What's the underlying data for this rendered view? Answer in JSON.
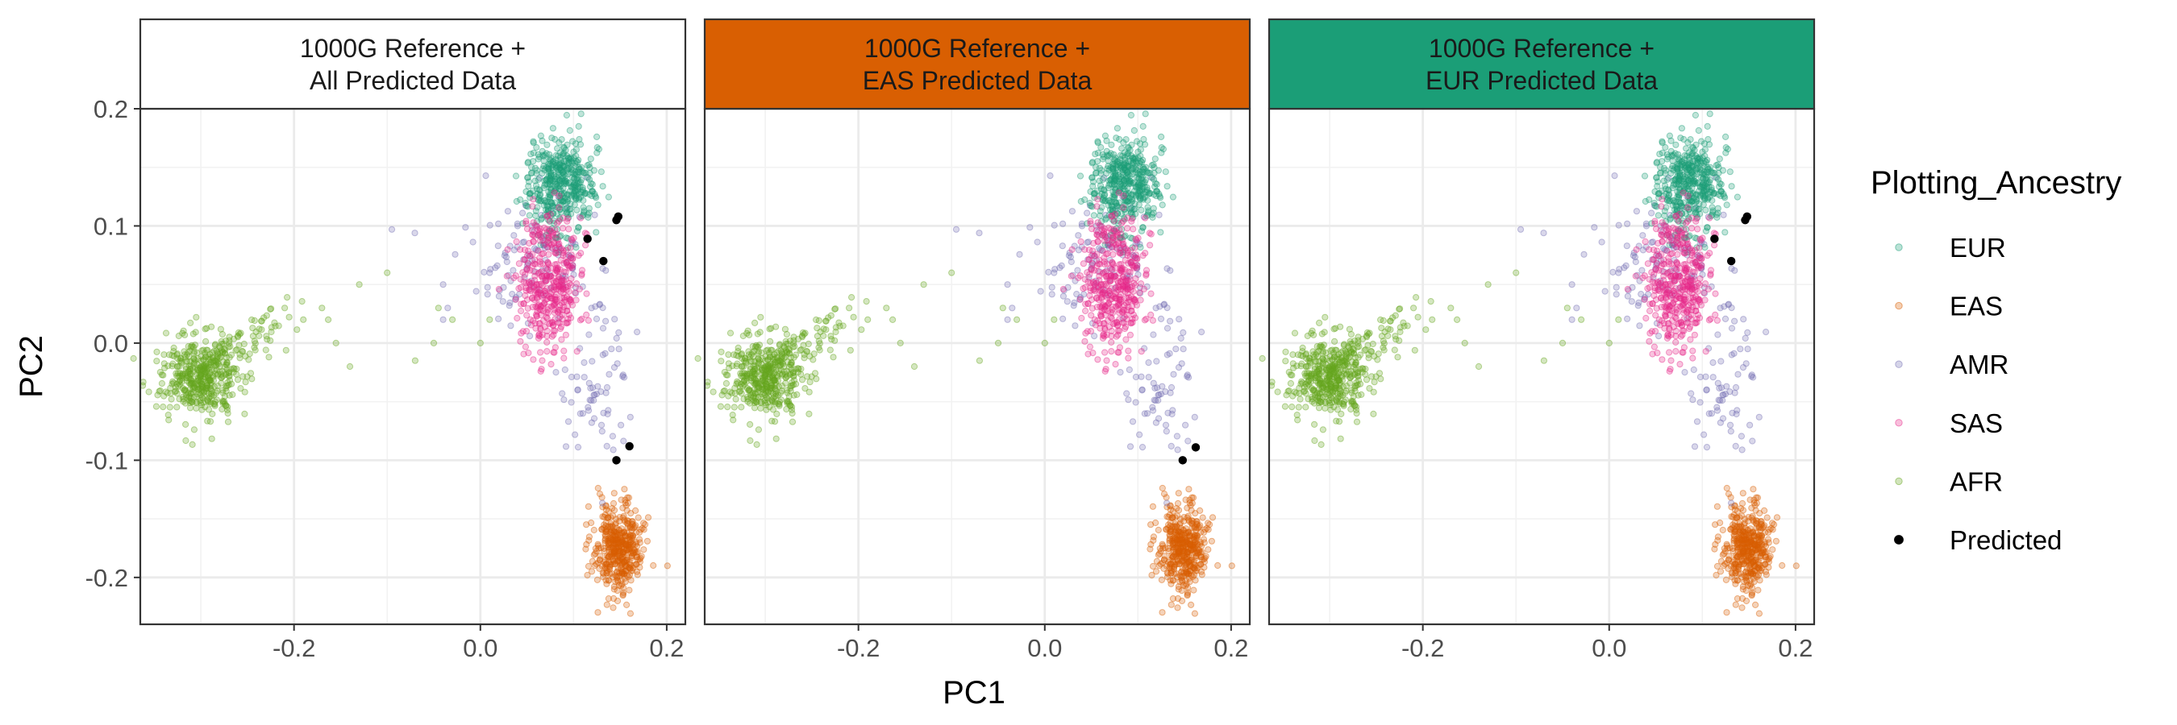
{
  "chart_data": {
    "type": "scatter",
    "xlabel": "PC1",
    "ylabel": "PC2",
    "xlim": [
      -0.365,
      0.22
    ],
    "ylim": [
      -0.24,
      0.2
    ],
    "x_ticks": [
      -0.2,
      0.0,
      0.2
    ],
    "x_tick_labels": [
      "-0.2",
      "0.0",
      "0.2"
    ],
    "y_ticks": [
      -0.2,
      -0.1,
      0.0,
      0.1,
      0.2
    ],
    "y_tick_labels": [
      "-0.2",
      "-0.1",
      "0.0",
      "0.1",
      "0.2"
    ],
    "grid": true,
    "legend": {
      "title": "Plotting_Ancestry",
      "position": "right",
      "entries": [
        {
          "label": "EUR",
          "color": "#1b9e77",
          "opacity": 0.3
        },
        {
          "label": "EAS",
          "color": "#d95f02",
          "opacity": 0.3
        },
        {
          "label": "AMR",
          "color": "#7570b3",
          "opacity": 0.3
        },
        {
          "label": "SAS",
          "color": "#e7298a",
          "opacity": 0.3
        },
        {
          "label": "AFR",
          "color": "#66a61e",
          "opacity": 0.3
        },
        {
          "label": "Predicted",
          "color": "#000000",
          "opacity": 1.0
        }
      ]
    },
    "reference_clusters": [
      {
        "group": "EUR",
        "center": [
          0.085,
          0.135
        ],
        "spread": [
          0.018,
          0.02
        ],
        "n": 420
      },
      {
        "group": "EAS",
        "center": [
          0.148,
          -0.175
        ],
        "spread": [
          0.013,
          0.018
        ],
        "n": 420
      },
      {
        "group": "AFR",
        "center": [
          -0.3,
          -0.03
        ],
        "spread": [
          0.02,
          0.017
        ],
        "n": 420
      },
      {
        "group": "AFR",
        "center": [
          -0.25,
          0.005
        ],
        "spread": [
          0.025,
          0.012
        ],
        "n": 70
      },
      {
        "group": "AMR",
        "center": [
          0.05,
          0.07
        ],
        "spread": [
          0.04,
          0.025
        ],
        "n": 110
      },
      {
        "group": "AMR",
        "center": [
          0.125,
          -0.035
        ],
        "spread": [
          0.02,
          0.035
        ],
        "n": 70
      },
      {
        "group": "SAS",
        "center": [
          0.075,
          0.05
        ],
        "spread": [
          0.017,
          0.03
        ],
        "n": 400
      }
    ],
    "panels": [
      {
        "title_line1": "1000G Reference +",
        "title_line2": "All Predicted Data",
        "strip_color": "#ffffff",
        "predicted": [
          [
            0.148,
            0.108
          ],
          [
            0.146,
            0.105
          ],
          [
            0.115,
            0.089
          ],
          [
            0.132,
            0.07
          ],
          [
            0.16,
            -0.088
          ],
          [
            0.146,
            -0.1
          ]
        ]
      },
      {
        "title_line1": "1000G Reference +",
        "title_line2": "EAS Predicted Data",
        "strip_color": "#d95f02",
        "predicted": [
          [
            0.162,
            -0.089
          ],
          [
            0.148,
            -0.1
          ]
        ]
      },
      {
        "title_line1": "1000G Reference +",
        "title_line2": "EUR Predicted Data",
        "strip_color": "#1b9e77",
        "predicted": [
          [
            0.148,
            0.108
          ],
          [
            0.146,
            0.105
          ],
          [
            0.113,
            0.089
          ],
          [
            0.131,
            0.07
          ]
        ]
      }
    ]
  }
}
